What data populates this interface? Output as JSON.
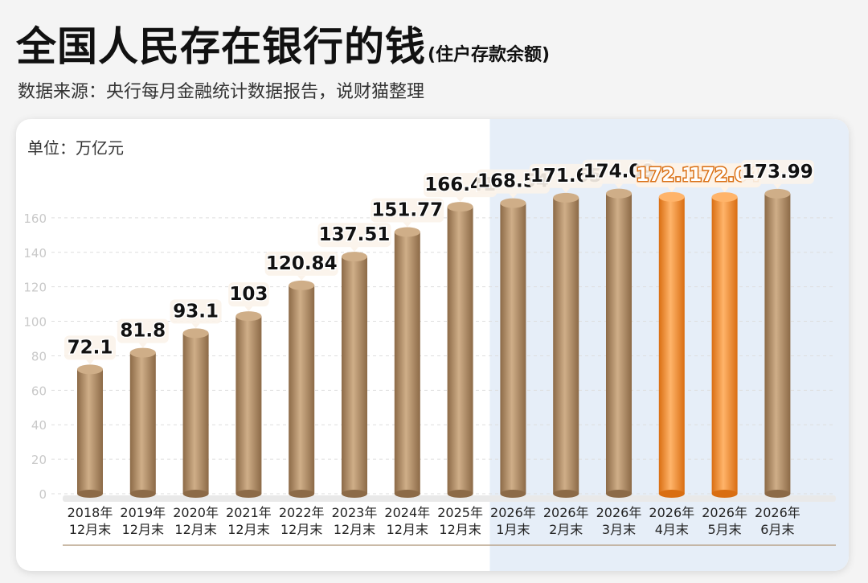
{
  "header": {
    "title": "全国人民存在银行的钱",
    "title_sub": "(住户存款余额)",
    "source": "数据来源：央行每月金融统计数据报告，说财猫整理"
  },
  "chart_data": {
    "type": "bar",
    "unit_label": "单位：万亿元",
    "categories": [
      [
        "2018年",
        "12月末"
      ],
      [
        "2019年",
        "12月末"
      ],
      [
        "2020年",
        "12月末"
      ],
      [
        "2021年",
        "12月末"
      ],
      [
        "2022年",
        "12月末"
      ],
      [
        "2023年",
        "12月末"
      ],
      [
        "2024年",
        "12月末"
      ],
      [
        "2025年",
        "12月末"
      ],
      [
        "2026年",
        "1月末"
      ],
      [
        "2026年",
        "2月末"
      ],
      [
        "2026年",
        "3月末"
      ],
      [
        "2026年",
        "4月末"
      ],
      [
        "2026年",
        "5月末"
      ],
      [
        "2026年",
        "6月末"
      ]
    ],
    "values": [
      72.1,
      81.8,
      93.1,
      103,
      120.84,
      137.51,
      151.77,
      166.41,
      168.54,
      171.65,
      174.09,
      172.15,
      172.04,
      173.99
    ],
    "value_labels": [
      "72.1",
      "81.8",
      "93.1",
      "103",
      "120.84",
      "137.51",
      "151.77",
      "166.41",
      "168.54",
      "171.65",
      "174.09",
      "172.15",
      "172.04",
      "173.99"
    ],
    "highlight_indices": [
      11,
      12
    ],
    "yticks": [
      0,
      20,
      40,
      60,
      80,
      100,
      120,
      140,
      160
    ],
    "ylim": [
      0,
      180
    ],
    "grid": true,
    "colors": {
      "bar": "#b48f67",
      "bar_dark": "#8c6a47",
      "bar_light": "#cfae88",
      "highlight": "#f38a2a",
      "highlight_dark": "#d96e12",
      "highlight_light": "#ffb46a",
      "shade_region": "#e6eef8"
    }
  }
}
